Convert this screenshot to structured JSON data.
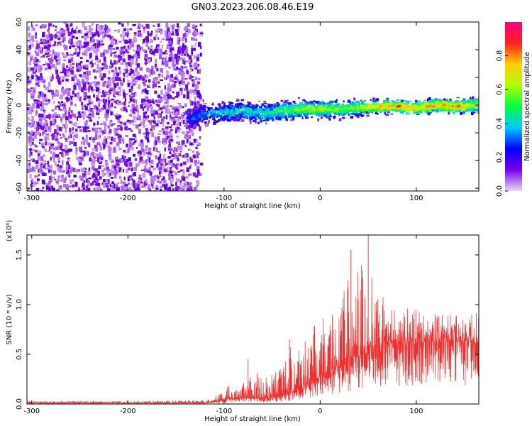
{
  "title": "GN03.2023.206.08.46.E19",
  "chart_data": [
    {
      "type": "heatmap",
      "xlabel": "Height of straight line (km)",
      "ylabel": "Frequency (Hz)",
      "xlim": [
        -305,
        165
      ],
      "ylim": [
        -62,
        60
      ],
      "xticks": [
        -300,
        -200,
        -100,
        0,
        100
      ],
      "yticks": [
        -60,
        -40,
        -20,
        0,
        20,
        40,
        60
      ],
      "colorbar": {
        "label": "Normalized spectral amplitude",
        "range": [
          0,
          1
        ],
        "ticks": [
          "0.0",
          "0.2",
          "0.4",
          "0.6",
          "0.8"
        ],
        "tick_values": [
          0,
          0.2,
          0.4,
          0.6,
          0.8
        ],
        "colormap": [
          "#e8d8f8",
          "#7a00e8",
          "#0000ff",
          "#00c8ff",
          "#00ff40",
          "#b0ff00",
          "#ffd000",
          "#ff2020",
          "#ff0080"
        ]
      },
      "noise_region_x": [
        -305,
        -125
      ],
      "signal_band": {
        "x": [
          -140,
          -120,
          -100,
          -80,
          -60,
          -40,
          -20,
          0,
          20,
          40,
          60,
          80,
          100,
          120,
          140,
          165
        ],
        "center_hz": [
          -10,
          -5,
          -4,
          -3,
          -5,
          -3,
          -2,
          -2,
          -2,
          -1,
          0,
          0,
          -1,
          1,
          0,
          1
        ],
        "amplitude": [
          0.25,
          0.35,
          0.4,
          0.45,
          0.45,
          0.55,
          0.6,
          0.65,
          0.6,
          0.65,
          0.8,
          0.85,
          0.75,
          0.8,
          0.85,
          0.6
        ]
      }
    },
    {
      "type": "line",
      "xlabel": "Height of straight line (km)",
      "ylabel": "SNR (10 * v/v)",
      "y_scale_label": "(x10⁴)",
      "xlim": [
        -305,
        165
      ],
      "ylim": [
        0,
        1.7
      ],
      "xticks": [
        -300,
        -200,
        -100,
        0,
        100
      ],
      "yticks": [
        0.0,
        0.5,
        1.0,
        1.5
      ],
      "color": "#f03030",
      "envelope": {
        "x": [
          -305,
          -200,
          -120,
          -105,
          -95,
          -80,
          -70,
          -60,
          -50,
          -40,
          -30,
          -20,
          -10,
          0,
          10,
          20,
          30,
          40,
          50,
          60,
          70,
          80,
          100,
          120,
          140,
          165
        ],
        "baseline": [
          0.01,
          0.01,
          0.01,
          0.03,
          0.05,
          0.06,
          0.06,
          0.05,
          0.06,
          0.08,
          0.12,
          0.15,
          0.2,
          0.25,
          0.3,
          0.35,
          0.4,
          0.45,
          0.5,
          0.52,
          0.55,
          0.58,
          0.6,
          0.62,
          0.62,
          0.6
        ],
        "peak": [
          0.03,
          0.03,
          0.04,
          0.1,
          0.2,
          0.28,
          0.35,
          0.3,
          0.32,
          0.45,
          0.6,
          0.7,
          0.75,
          0.85,
          0.95,
          1.1,
          1.3,
          1.45,
          1.6,
          1.2,
          1.05,
          0.95,
          0.98,
          0.92,
          0.9,
          0.92
        ]
      },
      "spikes": [
        {
          "x": -75,
          "y": 0.45
        },
        {
          "x": -32,
          "y": 0.65
        },
        {
          "x": 32,
          "y": 1.55
        },
        {
          "x": 43,
          "y": 1.4
        },
        {
          "x": 50,
          "y": 1.7
        },
        {
          "x": 60,
          "y": 1.05
        },
        {
          "x": 165,
          "y": 0.98
        }
      ]
    }
  ]
}
